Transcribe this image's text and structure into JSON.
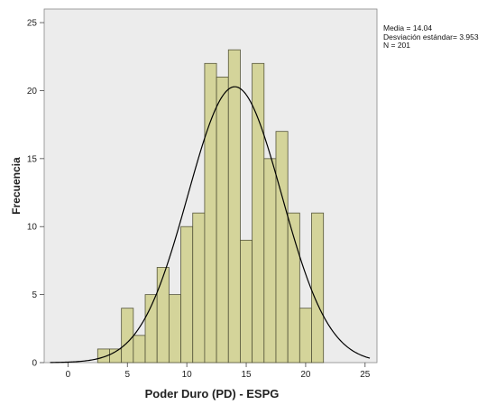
{
  "chart_data": {
    "type": "bar",
    "subtype": "histogram",
    "xlabel": "Poder Duro (PD) - ESPG",
    "ylabel": "Frecuencia",
    "xlim": [
      -2,
      26
    ],
    "ylim": [
      0,
      26
    ],
    "xticks": [
      0,
      5,
      10,
      15,
      20,
      25
    ],
    "yticks": [
      0,
      5,
      10,
      15,
      20,
      25
    ],
    "bin_width": 1,
    "bins": [
      {
        "x0": 2.5,
        "x1": 3.5,
        "count": 1
      },
      {
        "x0": 3.5,
        "x1": 4.5,
        "count": 1
      },
      {
        "x0": 4.5,
        "x1": 5.5,
        "count": 4
      },
      {
        "x0": 5.5,
        "x1": 6.5,
        "count": 2
      },
      {
        "x0": 6.5,
        "x1": 7.5,
        "count": 5
      },
      {
        "x0": 7.5,
        "x1": 8.5,
        "count": 7
      },
      {
        "x0": 8.5,
        "x1": 9.5,
        "count": 5
      },
      {
        "x0": 9.5,
        "x1": 10.5,
        "count": 10
      },
      {
        "x0": 10.5,
        "x1": 11.5,
        "count": 11
      },
      {
        "x0": 11.5,
        "x1": 12.5,
        "count": 22
      },
      {
        "x0": 12.5,
        "x1": 13.5,
        "count": 21
      },
      {
        "x0": 13.5,
        "x1": 14.5,
        "count": 23
      },
      {
        "x0": 14.5,
        "x1": 15.5,
        "count": 9
      },
      {
        "x0": 15.5,
        "x1": 16.5,
        "count": 22
      },
      {
        "x0": 16.5,
        "x1": 17.5,
        "count": 15
      },
      {
        "x0": 17.5,
        "x1": 18.5,
        "count": 17
      },
      {
        "x0": 18.5,
        "x1": 19.5,
        "count": 11
      },
      {
        "x0": 19.5,
        "x1": 20.5,
        "count": 4
      },
      {
        "x0": 20.5,
        "x1": 21.5,
        "count": 11
      }
    ],
    "normal_curve": {
      "mean": 14.04,
      "sd": 3.953,
      "n": 201
    },
    "grid": false,
    "bar_color": "#d4d49a",
    "bar_edge_color": "#55553a",
    "plot_background": "#ececec",
    "stats_text": [
      "Media = 14.04",
      "Desviación estándar= 3.953",
      "N = 201"
    ]
  }
}
